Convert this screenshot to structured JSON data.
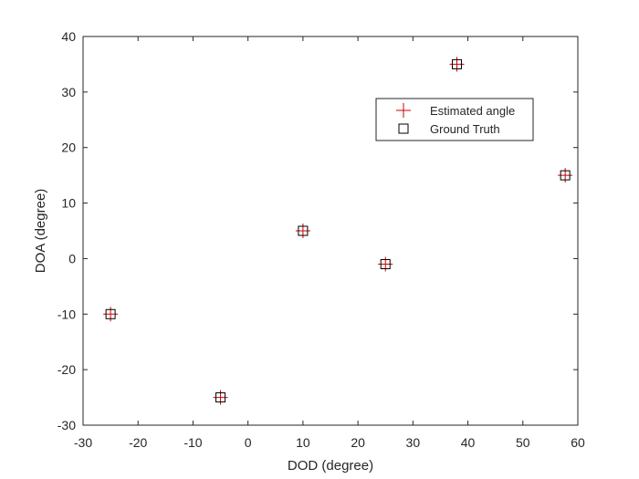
{
  "chart_data": {
    "type": "scatter",
    "xlabel": "DOD (degree)",
    "ylabel": "DOA (degree)",
    "xlim": [
      -30,
      60
    ],
    "ylim": [
      -30,
      40
    ],
    "xticks": [
      -30,
      -20,
      -10,
      0,
      10,
      20,
      30,
      40,
      50,
      60
    ],
    "yticks": [
      -30,
      -20,
      -10,
      0,
      10,
      20,
      30,
      40
    ],
    "grid": false,
    "legend_position": "upper-right-inside",
    "series": [
      {
        "name": "Estimated angle",
        "marker": "plus",
        "color": "#cc0000",
        "x": [
          -25,
          -5,
          10,
          25,
          38,
          57.7
        ],
        "y": [
          -10,
          -25,
          5,
          -1,
          35,
          15
        ]
      },
      {
        "name": "Ground Truth",
        "marker": "square",
        "color": "#000000",
        "x": [
          -25,
          -5,
          10,
          25,
          38,
          57.7
        ],
        "y": [
          -10,
          -25,
          5,
          -1,
          35,
          15
        ]
      }
    ]
  }
}
